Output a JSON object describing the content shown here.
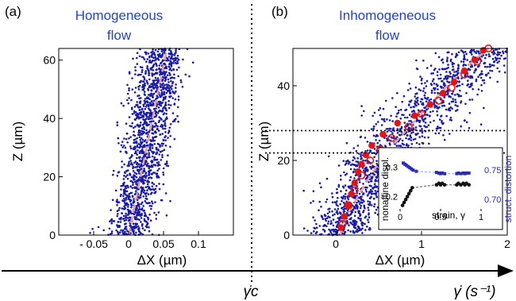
{
  "colors": {
    "scatter": "#1a1aa8",
    "title_text": "#2244cc",
    "fit_line": "#e8a0a0",
    "red_marker": "#e01515",
    "axis": "#000000",
    "inset_blue": "#2a2ab8",
    "inset_black": "#111111",
    "inset_fit": "#9bb7d9"
  },
  "chart_data": [
    {
      "type": "scatter",
      "panel_label": "(a)",
      "title": [
        "Homogeneous",
        "flow"
      ],
      "xlabel": "ΔX (µm)",
      "ylabel": "Z (µm)",
      "xlim": [
        -0.1,
        0.15
      ],
      "ylim": [
        0,
        64
      ],
      "xticks": [
        -0.05,
        0,
        0.05,
        0.1
      ],
      "xtick_labels": [
        "- 0.05",
        "0",
        "0.05",
        "0.1"
      ],
      "yticks": [
        0,
        20,
        40,
        60
      ],
      "ytick_labels": [
        "0",
        "20",
        "40",
        "60"
      ],
      "series": [
        {
          "style": "dense-points",
          "x_center_at_z0": 0.0,
          "x_center_at_ztop": 0.05,
          "spread_sd": 0.016,
          "count": 1500
        },
        {
          "style": "dashed-line",
          "points": [
            [
              0.0,
              0
            ],
            [
              0.055,
              64
            ]
          ]
        }
      ]
    },
    {
      "type": "scatter",
      "panel_label": "(b)",
      "title": [
        "Inhomogeneous",
        "flow"
      ],
      "xlabel": "ΔX (µm)",
      "ylabel": "Z (µm)",
      "xlim": [
        -0.5,
        2.0
      ],
      "ylim": [
        0,
        50
      ],
      "xticks": [
        0,
        1,
        2
      ],
      "xtick_labels": [
        "0",
        "1",
        "2"
      ],
      "yticks": [
        0,
        20,
        40
      ],
      "ytick_labels": [
        "0",
        "20",
        "40"
      ],
      "horizontal_dotted_lines": [
        22,
        28
      ],
      "series": [
        {
          "style": "dense-points",
          "count": 1500
        },
        {
          "style": "dashed-line",
          "points": [
            [
              0.05,
              0
            ],
            [
              0.12,
              5
            ],
            [
              0.25,
              10
            ],
            [
              0.38,
              15
            ],
            [
              0.52,
              20
            ],
            [
              0.7,
              25
            ],
            [
              0.9,
              30
            ],
            [
              1.1,
              35
            ],
            [
              1.3,
              40
            ],
            [
              1.52,
              45
            ],
            [
              1.78,
              50
            ]
          ]
        },
        {
          "style": "filled-circles",
          "points": [
            [
              0.06,
              2
            ],
            [
              0.1,
              5
            ],
            [
              0.14,
              8
            ],
            [
              0.18,
              11
            ],
            [
              0.22,
              14
            ],
            [
              0.26,
              17
            ],
            [
              0.3,
              19
            ],
            [
              0.35,
              21.5
            ],
            [
              0.42,
              24
            ],
            [
              0.55,
              27
            ],
            [
              0.72,
              30
            ],
            [
              0.92,
              32
            ],
            [
              1.1,
              35
            ],
            [
              1.25,
              38
            ],
            [
              1.38,
              41
            ],
            [
              1.5,
              44
            ],
            [
              1.62,
              47
            ],
            [
              1.72,
              49.5
            ]
          ]
        },
        {
          "style": "open-circles",
          "points": [
            [
              0.08,
              3
            ],
            [
              0.15,
              8
            ],
            [
              0.22,
              12
            ],
            [
              0.3,
              16
            ],
            [
              0.4,
              20
            ],
            [
              0.52,
              23
            ],
            [
              0.65,
              26
            ],
            [
              0.85,
              29
            ],
            [
              1.0,
              32.5
            ],
            [
              1.2,
              36
            ],
            [
              1.35,
              39.5
            ],
            [
              1.5,
              43
            ],
            [
              1.65,
              46.5
            ],
            [
              1.78,
              50
            ]
          ]
        }
      ]
    },
    {
      "type": "scatter",
      "role": "inset",
      "xlabel": "strain, γ",
      "ylabel_left": "nonaffine displ.",
      "ylabel_right": "struct. distortion",
      "xlim": [
        0,
        1.0
      ],
      "ylim_left": [
        0.15,
        0.35
      ],
      "ylim_right": [
        0.68,
        0.78
      ],
      "xticks": [
        0,
        0.5,
        1
      ],
      "xtick_labels": [
        "0",
        "0.5",
        "1"
      ],
      "yticks_left": [
        0.2,
        0.3
      ],
      "ytick_labels_left": [
        "0.2",
        "0.3"
      ],
      "yticks_right": [
        0.7,
        0.75
      ],
      "ytick_labels_right": [
        "0.70",
        "0.75"
      ],
      "series": [
        {
          "name": "struct. distortion",
          "axis": "right",
          "x": [
            0.04,
            0.06,
            0.08,
            0.1,
            0.12,
            0.14,
            0.16,
            0.2,
            0.45,
            0.48,
            0.5,
            0.52,
            0.55,
            0.7,
            0.72,
            0.75,
            0.78,
            0.8,
            0.82,
            0.85
          ],
          "y": [
            0.762,
            0.76,
            0.758,
            0.756,
            0.754,
            0.752,
            0.75,
            0.748,
            0.746,
            0.745,
            0.744,
            0.745,
            0.744,
            0.744,
            0.745,
            0.744,
            0.745,
            0.744,
            0.745,
            0.745
          ]
        },
        {
          "name": "nonaffine displ.",
          "axis": "left",
          "x": [
            0.03,
            0.05,
            0.07,
            0.09,
            0.11,
            0.13,
            0.15,
            0.45,
            0.48,
            0.5,
            0.52,
            0.55,
            0.7,
            0.72,
            0.75,
            0.78,
            0.8,
            0.82,
            0.85
          ],
          "y": [
            0.17,
            0.18,
            0.19,
            0.2,
            0.21,
            0.22,
            0.23,
            0.24,
            0.245,
            0.24,
            0.245,
            0.24,
            0.24,
            0.245,
            0.24,
            0.245,
            0.24,
            0.245,
            0.24
          ]
        }
      ]
    }
  ],
  "bottom_axis": {
    "critical_label": "γ̇c",
    "axis_label": "γ̇ (s⁻¹)"
  }
}
